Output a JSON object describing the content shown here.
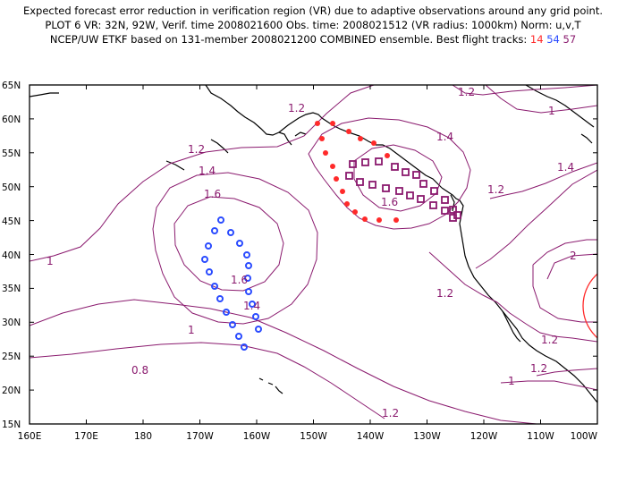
{
  "header": {
    "line1": "Expected forecast error reduction in verification region (VR) due to adaptive observations around any grid point.",
    "line2": "PLOT 6 VR: 32N, 92W, Verif. time 2008021600 Obs. time: 2008021512 (VR radius: 1000km) Norm: u,v,T",
    "line3_prefix": "NCEP/UW ETKF based on 131-member 2008021200 COMBINED ensemble.  Best flight tracks: ",
    "track_a": "14",
    "track_b": "54",
    "track_c": "57"
  },
  "map": {
    "lat_labels": [
      "65N",
      "60N",
      "55N",
      "50N",
      "45N",
      "40N",
      "35N",
      "30N",
      "25N",
      "20N",
      "15N"
    ],
    "lon_labels": [
      "160E",
      "170E",
      "180",
      "170W",
      "160W",
      "150W",
      "140W",
      "130W",
      "120W",
      "110W",
      "100W"
    ],
    "contour_labels": [
      "1.2",
      "1.4",
      "1.6",
      "1",
      "0.8",
      "1.2",
      "1.4",
      "1.6",
      "1.2",
      "1.2",
      "1.2",
      "1.4",
      "1.2",
      "1.2",
      "1",
      "2",
      "1.2",
      "1",
      "1.6",
      "1.4",
      "1"
    ],
    "colors": {
      "contour": "#8a1a6e",
      "track_14": "#ff2a2a",
      "track_54": "#2a4bff",
      "track_57": "#8a1a6e",
      "verification_region": "#ff2a2a",
      "coast": "#000000"
    }
  }
}
